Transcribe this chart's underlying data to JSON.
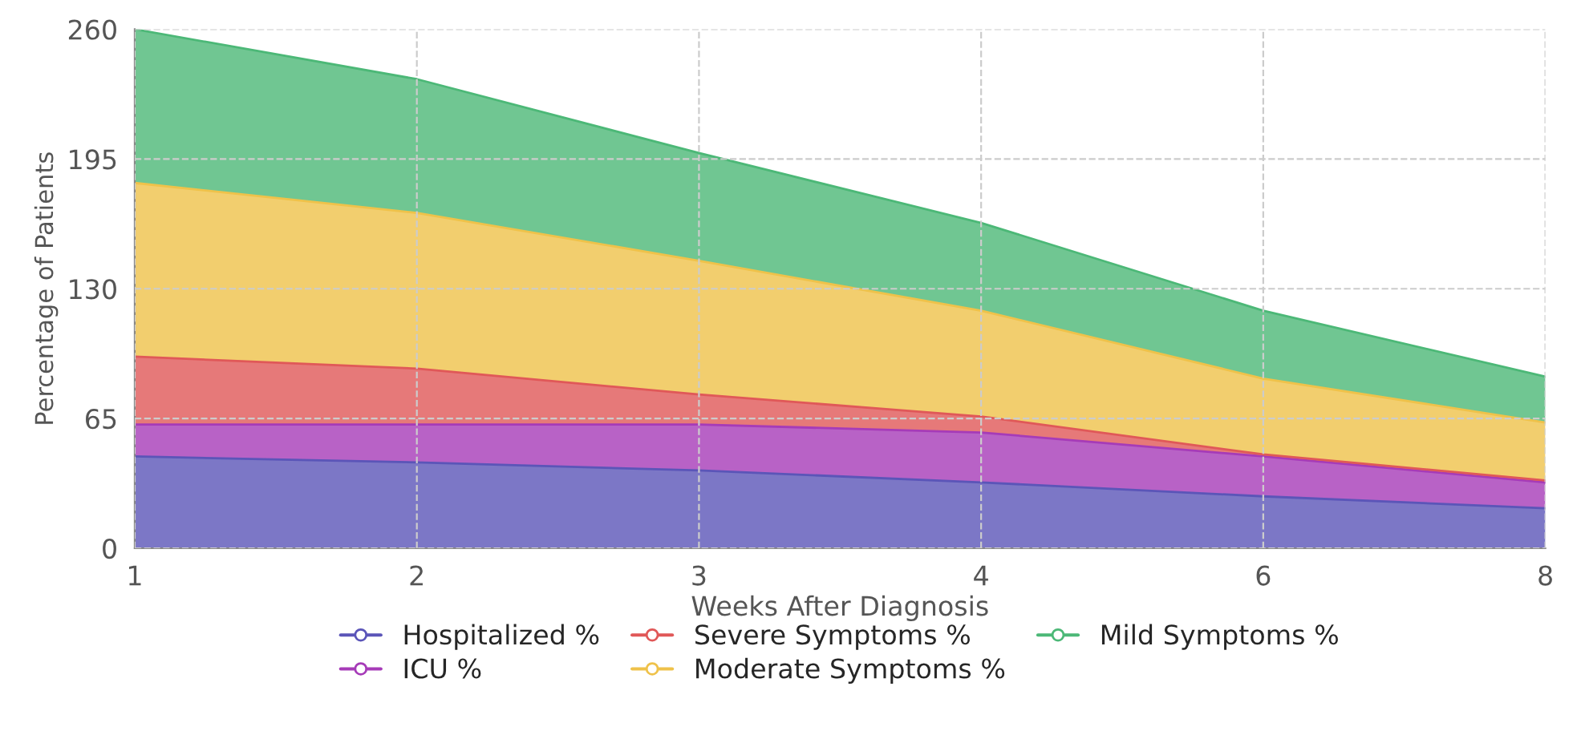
{
  "chart_data": {
    "type": "area",
    "stacked": true,
    "xlabel": "Weeks After Diagnosis",
    "ylabel": "Percentage of Patients",
    "categories": [
      "1",
      "2",
      "3",
      "4",
      "6",
      "8"
    ],
    "series": [
      {
        "name": "Hospitalized %",
        "color": "#5b55b8",
        "values": [
          46,
          43,
          39,
          33,
          26,
          20
        ]
      },
      {
        "name": "ICU %",
        "color": "#a63bb8",
        "values": [
          16,
          19,
          23,
          25,
          20,
          13
        ]
      },
      {
        "name": "Severe Symptoms %",
        "color": "#e05858",
        "values": [
          34,
          28,
          15,
          8,
          1,
          1
        ]
      },
      {
        "name": "Moderate Symptoms %",
        "color": "#efc24a",
        "values": [
          87,
          78,
          67,
          53,
          38,
          29
        ]
      },
      {
        "name": "Mild Symptoms %",
        "color": "#4cb877",
        "values": [
          77,
          67,
          54,
          44,
          34,
          23
        ]
      }
    ],
    "ylim": [
      0,
      260
    ],
    "yticks": [
      0,
      65,
      130,
      195,
      260
    ],
    "grid": true,
    "legend": "bottom"
  }
}
